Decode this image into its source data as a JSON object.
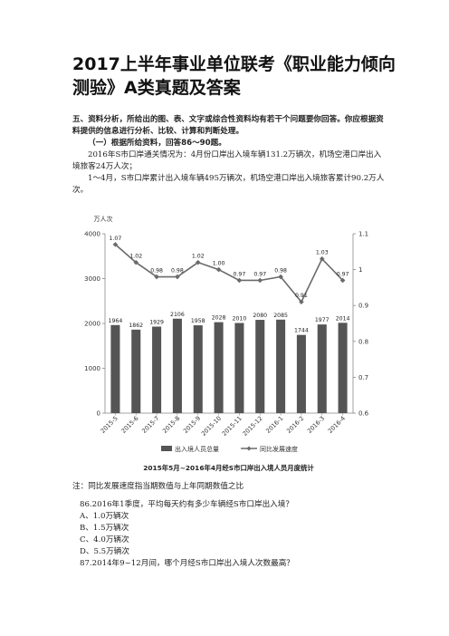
{
  "doc": {
    "title": "2017上半年事业单位联考《职业能力倾向测验》A类真题及答案",
    "section_heading": "五、资料分析，所给出的图、表、文字或综合性资料均有若干个问题要你回答。你应根据资料提供的信息进行分析、比较、计算和判断处理。",
    "sub_heading": "（一）根据所给资料，回答86～90题。",
    "para1": "2016年S市口岸通关情况为：4月份口岸出入境车辆131.2万辆次，机场空港口岸出入境旅客24万人次；",
    "para2": "1～4月，S市口岸累计出入境车辆495万辆次，机场空港口岸出入境旅客累计90.2万人次。",
    "chart_caption": "2015年5月~2016年4月经S市口岸出入境人员月度统计",
    "note": "注：同比发展速度指当期数值与上年同期数值之比",
    "q86": "86.2016年1季度，平均每天约有多少车辆经S市口岸出入境？",
    "options": [
      "A、1.0万辆次",
      "B、1.5万辆次",
      "C、4.0万辆次",
      "D、5.5万辆次"
    ],
    "q87": "87.2014年9~12月间，哪个月经S市口岸出入境人次数最高？"
  },
  "chart_data": {
    "type": "bar",
    "categories": [
      "2015-5",
      "2015-6",
      "2015-7",
      "2015-8",
      "2015-9",
      "2015-10",
      "2015-11",
      "2015-12",
      "2016-1",
      "2016-2",
      "2016-3",
      "2016-4"
    ],
    "series": [
      {
        "name": "出入境人员总量",
        "type": "bar",
        "axis": "left",
        "values": [
          1964,
          1862,
          1929,
          2106,
          1958,
          2028,
          2010,
          2080,
          2085,
          1744,
          1977,
          2014
        ]
      },
      {
        "name": "同比发展速度",
        "type": "line",
        "axis": "right",
        "values": [
          1.07,
          1.02,
          0.98,
          0.98,
          1.02,
          1.0,
          0.97,
          0.97,
          0.98,
          0.91,
          1.03,
          0.97
        ]
      }
    ],
    "ylabel": "万人次",
    "ylim": [
      0,
      4000
    ],
    "yticks": [
      0,
      1000,
      2000,
      3000,
      4000
    ],
    "y2lim": [
      0.6,
      1.1
    ],
    "y2ticks": [
      0.6,
      0.7,
      0.8,
      0.9,
      1,
      1.1
    ],
    "bar_labels": [
      "1964",
      "1862",
      "1929",
      "2106",
      "1958",
      "2028",
      "2010",
      "2080",
      "2085",
      "1744",
      "1977",
      "2014"
    ],
    "line_labels": [
      "1.07",
      "1.02",
      "0.98",
      "0.98",
      "1.02",
      "1.00",
      "0.97",
      "0.97",
      "0.98",
      "0.91",
      "1.03",
      "0.97"
    ],
    "y_tick_labels": [
      "0",
      "1000",
      "2000",
      "3000",
      "4000"
    ],
    "y2_tick_labels": [
      "0.6",
      "0.7",
      "0.8",
      "0.9",
      "1",
      "1.1"
    ],
    "legend": [
      "出入境人员总量",
      "同比发展速度"
    ],
    "legend_position": "bottom",
    "colors": {
      "bar": "#555555",
      "line": "#6b6b6b"
    },
    "grid": false
  }
}
